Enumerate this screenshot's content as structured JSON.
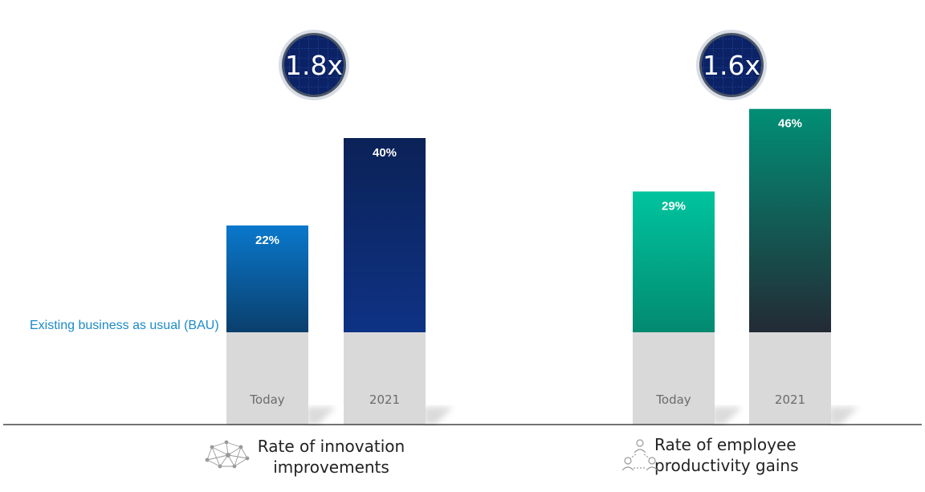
{
  "chart_data": [
    {
      "type": "bar",
      "title": "Rate of innovation improvements",
      "title_lines": [
        "Rate of innovation",
        "improvements"
      ],
      "categories": [
        "Today",
        "2021"
      ],
      "values": [
        22,
        40
      ],
      "value_labels": [
        "22%",
        "40%"
      ],
      "multiplier": "1.8x",
      "icon": "network-icon",
      "colors": {
        "top": [
          "#0a78cc",
          "#0b2257"
        ],
        "bottom": [
          "#0a3f6d",
          "#0e3284"
        ]
      }
    },
    {
      "type": "bar",
      "title": "Rate of employee productivity gains",
      "title_lines": [
        "Rate of employee",
        "productivity gains"
      ],
      "categories": [
        "Today",
        "2021"
      ],
      "values": [
        29,
        46
      ],
      "value_labels": [
        "29%",
        "46%"
      ],
      "multiplier": "1.6x",
      "icon": "people-icon",
      "colors": {
        "top": [
          "#00c49e",
          "#018f76"
        ],
        "bottom": [
          "#038a71",
          "#232a35"
        ]
      }
    }
  ],
  "baseline": {
    "label": "Existing business as usual (BAU)",
    "color": "#d9d9d9"
  },
  "badge_color": "#0b2266"
}
